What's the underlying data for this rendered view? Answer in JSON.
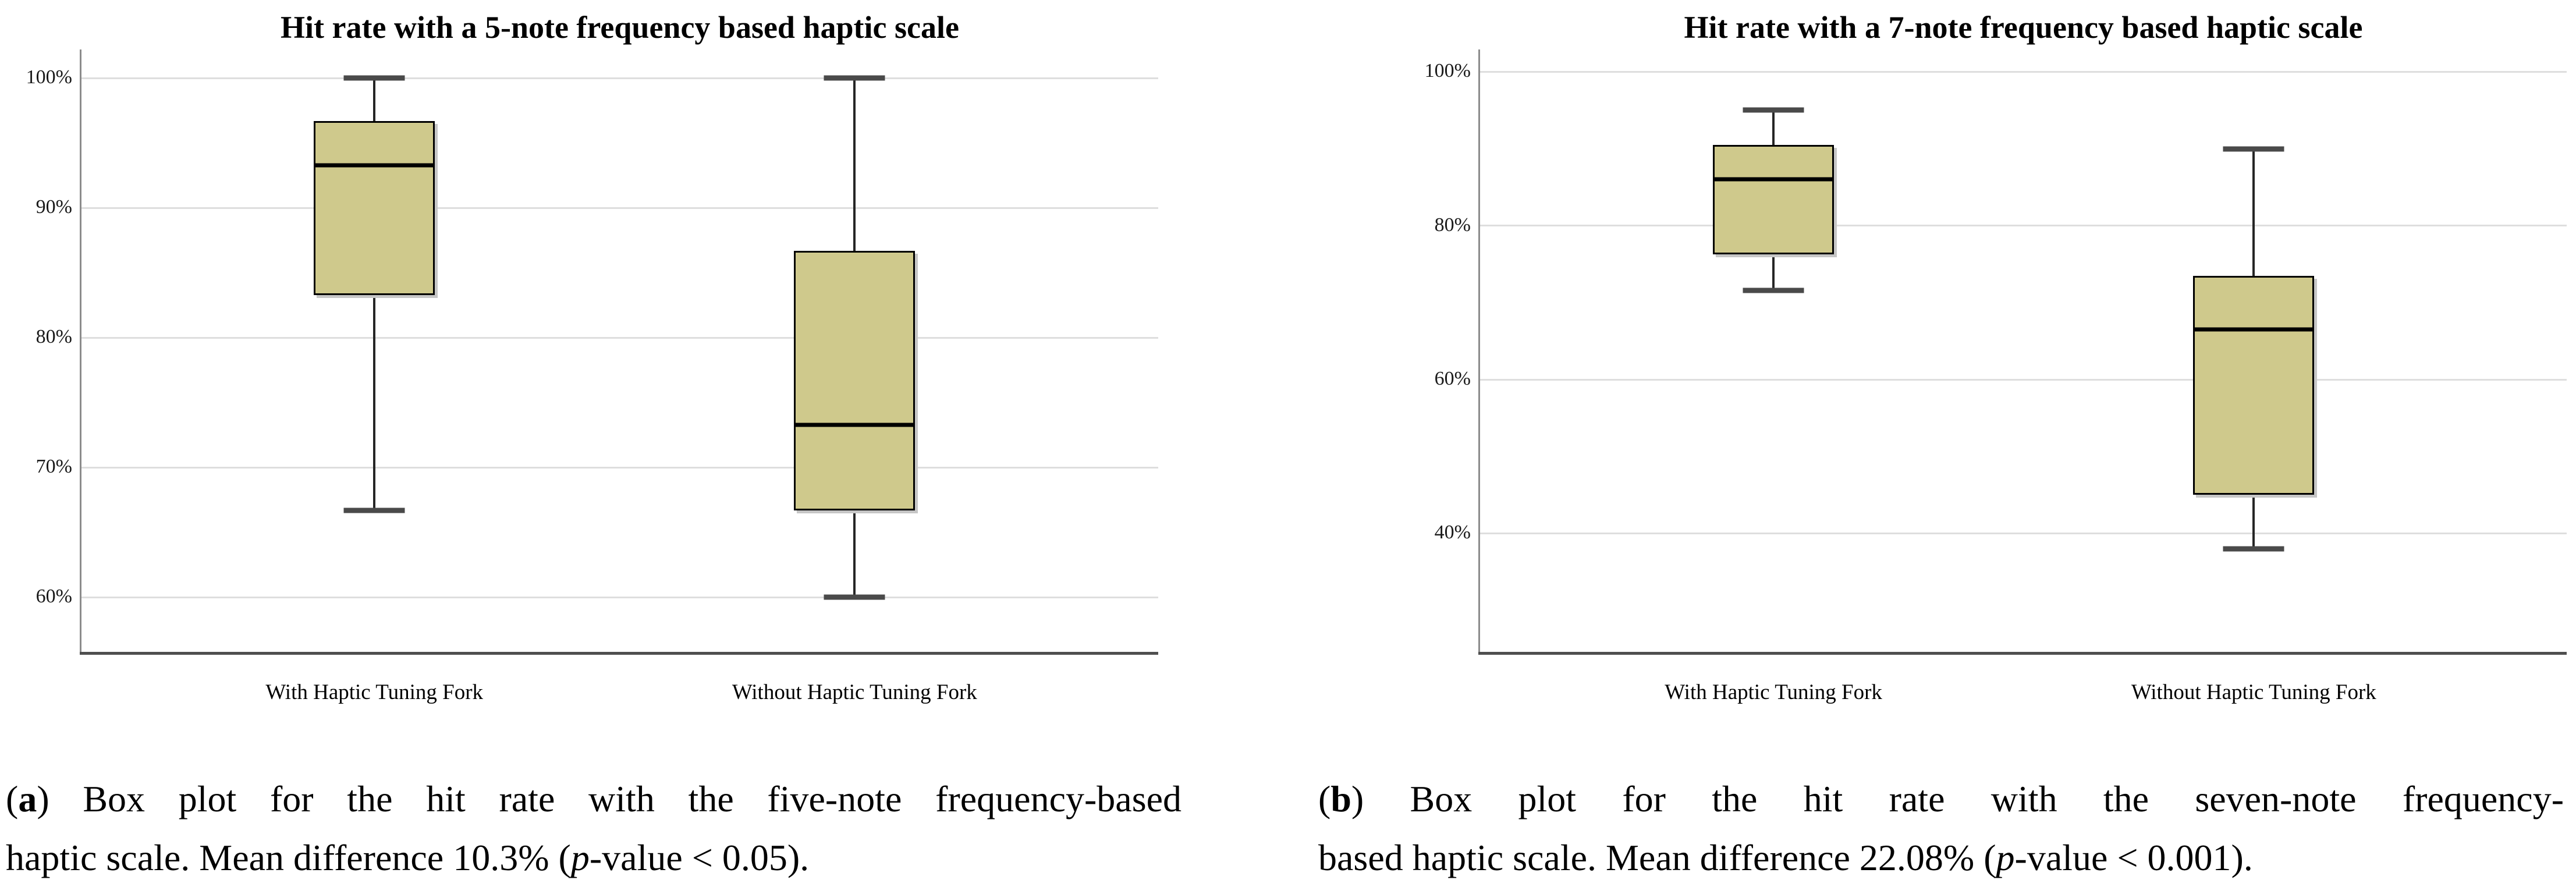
{
  "colors": {
    "background": "#ffffff",
    "box_fill": "#cfc98c",
    "box_border": "#000000",
    "median_line": "#000000",
    "whisker_line": "#262626",
    "whisker_cap": "#4a4a4a",
    "gridline": "#dedede",
    "y_axis_line": "#8c8c8c",
    "x_axis_line": "#4f4f4f",
    "text": "#000000"
  },
  "chart_data": [
    {
      "type": "box",
      "panel_label": "a",
      "title": "Hit rate with a 5-note frequency based haptic scale",
      "xlabel": "",
      "ylabel": "",
      "grid": true,
      "legend": null,
      "categories": [
        "With Haptic Tuning Fork",
        "Without Haptic Tuning Fork"
      ],
      "y_axis": {
        "unit": "%",
        "min": 55.8,
        "max": 102.2,
        "tick_values": [
          100,
          90,
          80,
          70,
          60
        ],
        "tick_labels": [
          "100%",
          "90%",
          "80%",
          "70%",
          "60%"
        ]
      },
      "series": [
        {
          "name": "With Haptic Tuning Fork",
          "min": 66.7,
          "q1": 83.3,
          "median": 93.3,
          "q3": 96.7,
          "max": 100
        },
        {
          "name": "Without Haptic Tuning Fork",
          "min": 60.0,
          "q1": 66.7,
          "median": 73.3,
          "q3": 86.7,
          "max": 100
        }
      ],
      "caption": {
        "plain": "(a) Box plot for the hit rate with the five-note frequency-based haptic scale. Mean difference 10.3% (p-value < 0.05).",
        "lines": [
          [
            {
              "t": "("
            },
            {
              "t": "a",
              "b": true
            },
            {
              "t": ") Box plot for the hit rate with the five-note frequency-based"
            }
          ],
          [
            {
              "t": "haptic scale. Mean difference 10.3% ("
            },
            {
              "t": "p",
              "i": true
            },
            {
              "t": "-value < 0.05)."
            }
          ]
        ]
      }
    },
    {
      "type": "box",
      "panel_label": "b",
      "title": "Hit rate with a 7-note frequency based haptic scale",
      "xlabel": "",
      "ylabel": "",
      "grid": true,
      "legend": null,
      "categories": [
        "With Haptic Tuning Fork",
        "Without Haptic Tuning Fork"
      ],
      "y_axis": {
        "unit": "%",
        "min": 24.6,
        "max": 102.9,
        "tick_values": [
          100,
          80,
          60,
          40
        ],
        "tick_labels": [
          "100%",
          "80%",
          "60%",
          "40%"
        ]
      },
      "series": [
        {
          "name": "With Haptic Tuning Fork",
          "min": 71.6,
          "q1": 76.3,
          "median": 86.0,
          "q3": 90.5,
          "max": 95.0
        },
        {
          "name": "Without Haptic Tuning Fork",
          "min": 38.0,
          "q1": 45.0,
          "median": 66.5,
          "q3": 73.5,
          "max": 90.0
        }
      ],
      "caption": {
        "plain": "(b) Box plot for the hit rate with the seven-note frequency-based haptic scale. Mean difference 22.08% (p-value < 0.001).",
        "lines": [
          [
            {
              "t": "("
            },
            {
              "t": "b",
              "b": true
            },
            {
              "t": ") Box plot for the hit rate with the seven-note frequency-"
            }
          ],
          [
            {
              "t": "based haptic scale. Mean difference 22.08% ("
            },
            {
              "t": "p",
              "i": true
            },
            {
              "t": "-value < 0.001)."
            }
          ]
        ]
      }
    }
  ]
}
